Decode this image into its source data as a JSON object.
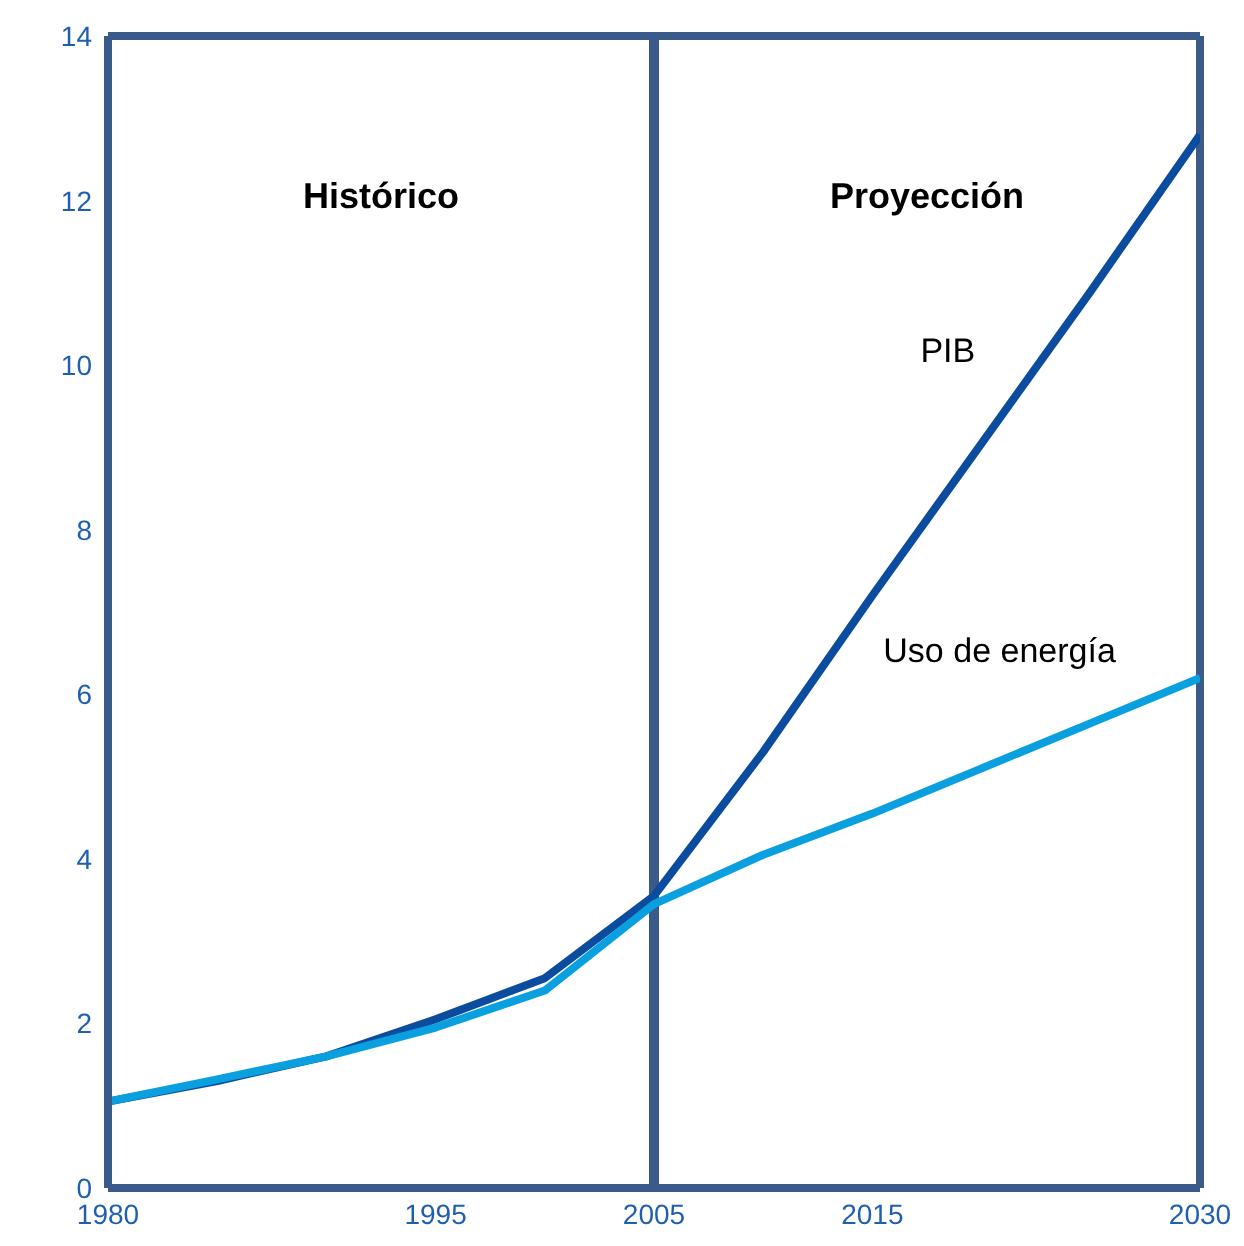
{
  "chart_data": {
    "type": "line",
    "x": [
      1980,
      1985,
      1990,
      1995,
      2000,
      2005,
      2010,
      2015,
      2020,
      2025,
      2030
    ],
    "series": [
      {
        "name": "PIB",
        "color": "#0b4c9e",
        "values": [
          1.05,
          1.3,
          1.6,
          2.05,
          2.55,
          3.55,
          5.3,
          7.2,
          9.05,
          10.9,
          12.8
        ]
      },
      {
        "name": "Uso de energía",
        "color": "#0aa0e0",
        "values": [
          1.05,
          1.32,
          1.6,
          1.95,
          2.4,
          3.45,
          4.05,
          4.55,
          5.1,
          5.65,
          6.2
        ]
      }
    ],
    "xlim": [
      1980,
      2030
    ],
    "xticks": [
      1980,
      1995,
      2005,
      2015,
      2030
    ],
    "ylim": [
      0,
      14
    ],
    "yticks": [
      0,
      2,
      4,
      6,
      8,
      10,
      12,
      14
    ],
    "ref_lines": [
      {
        "axis": "x",
        "value": 2005,
        "color": "#3a5a8a"
      }
    ],
    "annotations": [
      "Histórico",
      "Proyección"
    ],
    "grid": false,
    "legend": false,
    "marker": "none",
    "line_style": "solid"
  }
}
